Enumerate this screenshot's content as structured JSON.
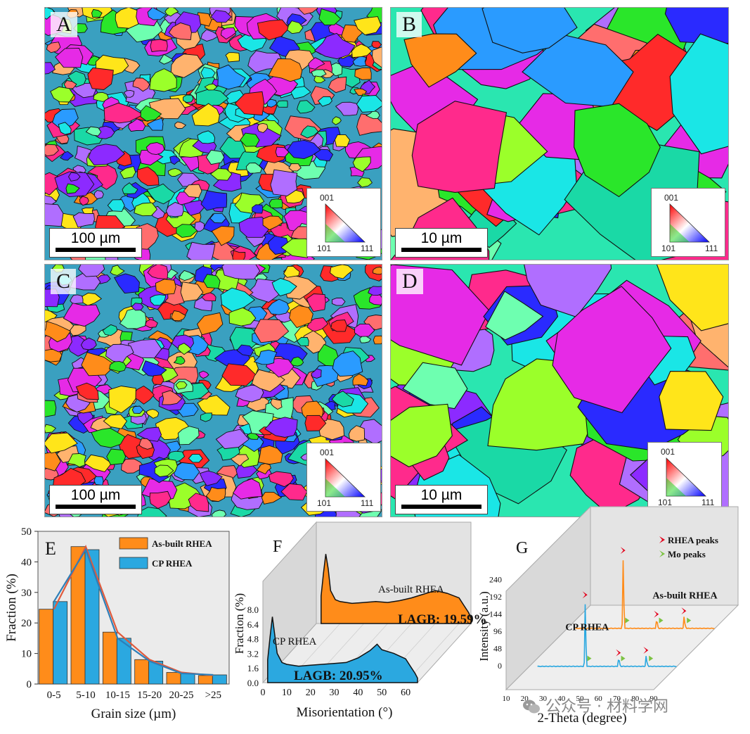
{
  "ebsd_panels": [
    {
      "label": "A",
      "scale": "100 µm",
      "ipf": {
        "top": "001",
        "left": "101",
        "right": "111"
      }
    },
    {
      "label": "B",
      "scale": "10 µm",
      "ipf": {
        "top": "001",
        "left": "101",
        "right": "111"
      }
    },
    {
      "label": "C",
      "scale": "100 µm",
      "ipf": {
        "top": "001",
        "left": "101",
        "right": "111"
      }
    },
    {
      "label": "D",
      "scale": "10 µm",
      "ipf": {
        "top": "001",
        "left": "101",
        "right": "111"
      }
    }
  ],
  "chart_data": [
    {
      "type": "bar",
      "panel": "E",
      "xlabel": "Grain size (µm)",
      "ylabel": "Fraction (%)",
      "categories": [
        "0-5",
        "5-10",
        "10-15",
        "15-20",
        "20-25",
        ">25"
      ],
      "ylim": [
        0,
        50
      ],
      "yticks": [
        0,
        10,
        20,
        30,
        40,
        50
      ],
      "legend_position": "top-right",
      "series": [
        {
          "name": "As-built RHEA",
          "color": "#ff8c1a",
          "values": [
            24.5,
            45,
            17,
            8,
            3.8,
            2.8
          ]
        },
        {
          "name": "CP RHEA",
          "color": "#2ba8e0",
          "values": [
            27,
            44,
            15,
            7.5,
            3.5,
            3
          ]
        }
      ]
    },
    {
      "type": "area",
      "panel": "F",
      "xlabel": "Misorientation (°)",
      "ylabel": "Fraction (%)",
      "xlim": [
        0,
        65
      ],
      "xticks": [
        0,
        10,
        20,
        30,
        40,
        50,
        60
      ],
      "ylim": [
        0,
        8.0
      ],
      "yticks": [
        "0.0",
        "1.6",
        "3.2",
        "4.8",
        "6.4",
        "8.0"
      ],
      "series": [
        {
          "name": "As-built RHEA",
          "color": "#ff8c1a",
          "annotation": "LAGB: 19.59%",
          "x": [
            2,
            3,
            4,
            5,
            6,
            8,
            10,
            15,
            20,
            25,
            30,
            35,
            40,
            45,
            50,
            55,
            60,
            62,
            64,
            65
          ],
          "y": [
            3.0,
            5.5,
            7.6,
            6.0,
            3.6,
            2.6,
            2.4,
            2.2,
            2.3,
            2.4,
            2.3,
            2.5,
            2.8,
            3.2,
            3.6,
            3.3,
            2.8,
            2.0,
            1.2,
            0.6
          ]
        },
        {
          "name": "CP RHEA",
          "color": "#2ba8e0",
          "annotation": "LAGB: 20.95%",
          "x": [
            2,
            3,
            4,
            5,
            6,
            8,
            10,
            15,
            20,
            25,
            30,
            35,
            40,
            45,
            48,
            50,
            55,
            60,
            62,
            64,
            65
          ],
          "y": [
            2.5,
            5.0,
            7.2,
            5.2,
            3.2,
            2.2,
            2.0,
            1.8,
            1.9,
            2.0,
            2.1,
            2.2,
            2.7,
            3.5,
            4.2,
            3.6,
            3.2,
            2.6,
            1.8,
            1.0,
            0.5
          ]
        }
      ]
    },
    {
      "type": "line",
      "panel": "G",
      "xlabel": "2-Theta (degree)",
      "ylabel": "Intensity (a.u.)",
      "xlim": [
        10,
        90
      ],
      "xticks": [
        10,
        20,
        30,
        40,
        50,
        60,
        70,
        80,
        90
      ],
      "ylim": [
        0,
        240
      ],
      "yticks": [
        0,
        48,
        96,
        144,
        192,
        240
      ],
      "legend": [
        {
          "name": "RHEA peaks",
          "color": "#e3001b"
        },
        {
          "name": "Mo peaks",
          "color": "#7cc242"
        }
      ],
      "series": [
        {
          "name": "As-built RHEA",
          "color": "#ff8c1a",
          "peaks": [
            {
              "x": 40.6,
              "y": 225
            },
            {
              "x": 58.7,
              "y": 28
            },
            {
              "x": 73.6,
              "y": 38
            }
          ],
          "mo_peaks": [
            40.9,
            59.2,
            74.3
          ]
        },
        {
          "name": "CP RHEA",
          "color": "#2ba8e0",
          "peaks": [
            {
              "x": 40.6,
              "y": 205
            },
            {
              "x": 58.7,
              "y": 26
            },
            {
              "x": 73.6,
              "y": 34
            }
          ],
          "mo_peaks": [
            40.9,
            59.2,
            74.3
          ]
        }
      ]
    }
  ],
  "watermark": {
    "icon": "wechat-icon",
    "text": "公众号 · 材料学网"
  }
}
